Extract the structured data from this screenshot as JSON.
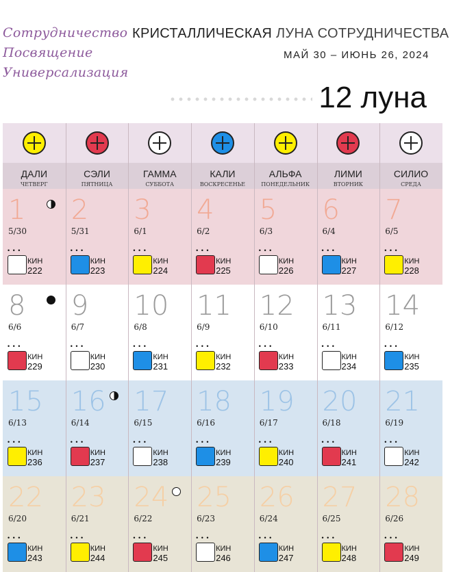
{
  "header": {
    "motto": [
      "Сотрудничество",
      "Посвящение",
      "Универсализация"
    ],
    "title_main": "КРИСТАЛЛИЧЕСКАЯ",
    "title_sub": "ЛУНА СОТРУДНИЧЕСТВА",
    "dates": "МАЙ 30 – ИЮНЬ 26, 2024",
    "moon_number": "12",
    "moon_word": "луна"
  },
  "colors": {
    "week1": "#f0d6db",
    "week2": "#ffffff",
    "week3": "#d6e4f1",
    "week4": "#e8e4d6",
    "week1_num": "#f1a994",
    "week2_num": "#9a9a9a",
    "week3_num": "#9dc3e6",
    "week4_num": "#f5cfa5"
  },
  "plasmas": [
    {
      "name": "ДАЛИ",
      "day": "ЧЕТВЕРГ",
      "color": "#ffef00",
      "icon": "dali-plasma-icon"
    },
    {
      "name": "СЭЛИ",
      "day": "ПЯТНИЦА",
      "color": "#e23a4f",
      "icon": "seli-plasma-icon"
    },
    {
      "name": "ГАММА",
      "day": "СУББОТА",
      "color": "#ffffff",
      "icon": "gamma-plasma-icon"
    },
    {
      "name": "КАЛИ",
      "day": "ВОСКРЕСЕНЬЕ",
      "color": "#1e8fe6",
      "icon": "kali-plasma-icon"
    },
    {
      "name": "АЛЬФА",
      "day": "ПОНЕДЕЛЬНИК",
      "color": "#ffef00",
      "icon": "alfa-plasma-icon"
    },
    {
      "name": "ЛИМИ",
      "day": "ВТОРНИК",
      "color": "#e23a4f",
      "icon": "limi-plasma-icon"
    },
    {
      "name": "СИЛИО",
      "day": "СРЕДА",
      "color": "#ffffff",
      "icon": "silio-plasma-icon"
    }
  ],
  "kin_label": "КИН",
  "weeks": [
    [
      {
        "n": "1",
        "d": "5/30",
        "kin": "222",
        "c": "#ffffff",
        "moon": "half"
      },
      {
        "n": "2",
        "d": "5/31",
        "kin": "223",
        "c": "#1e8fe6"
      },
      {
        "n": "3",
        "d": "6/1",
        "kin": "224",
        "c": "#ffef00"
      },
      {
        "n": "4",
        "d": "6/2",
        "kin": "225",
        "c": "#e23a4f"
      },
      {
        "n": "5",
        "d": "6/3",
        "kin": "226",
        "c": "#ffffff"
      },
      {
        "n": "6",
        "d": "6/4",
        "kin": "227",
        "c": "#1e8fe6"
      },
      {
        "n": "7",
        "d": "6/5",
        "kin": "228",
        "c": "#ffef00"
      }
    ],
    [
      {
        "n": "8",
        "d": "6/6",
        "kin": "229",
        "c": "#e23a4f",
        "moon": "new"
      },
      {
        "n": "9",
        "d": "6/7",
        "kin": "230",
        "c": "#ffffff"
      },
      {
        "n": "10",
        "d": "6/8",
        "kin": "231",
        "c": "#1e8fe6"
      },
      {
        "n": "11",
        "d": "6/9",
        "kin": "232",
        "c": "#ffef00"
      },
      {
        "n": "12",
        "d": "6/10",
        "kin": "233",
        "c": "#e23a4f"
      },
      {
        "n": "13",
        "d": "6/11",
        "kin": "234",
        "c": "#ffffff"
      },
      {
        "n": "14",
        "d": "6/12",
        "kin": "235",
        "c": "#1e8fe6"
      }
    ],
    [
      {
        "n": "15",
        "d": "6/13",
        "kin": "236",
        "c": "#ffef00"
      },
      {
        "n": "16",
        "d": "6/14",
        "kin": "237",
        "c": "#e23a4f",
        "moon": "half"
      },
      {
        "n": "17",
        "d": "6/15",
        "kin": "238",
        "c": "#ffffff"
      },
      {
        "n": "18",
        "d": "6/16",
        "kin": "239",
        "c": "#1e8fe6"
      },
      {
        "n": "19",
        "d": "6/17",
        "kin": "240",
        "c": "#ffef00"
      },
      {
        "n": "20",
        "d": "6/18",
        "kin": "241",
        "c": "#e23a4f"
      },
      {
        "n": "21",
        "d": "6/19",
        "kin": "242",
        "c": "#ffffff"
      }
    ],
    [
      {
        "n": "22",
        "d": "6/20",
        "kin": "243",
        "c": "#1e8fe6"
      },
      {
        "n": "23",
        "d": "6/21",
        "kin": "244",
        "c": "#ffef00"
      },
      {
        "n": "24",
        "d": "6/22",
        "kin": "245",
        "c": "#e23a4f",
        "moon": "full"
      },
      {
        "n": "25",
        "d": "6/23",
        "kin": "246",
        "c": "#ffffff"
      },
      {
        "n": "26",
        "d": "6/24",
        "kin": "247",
        "c": "#1e8fe6"
      },
      {
        "n": "27",
        "d": "6/25",
        "kin": "248",
        "c": "#ffef00"
      },
      {
        "n": "28",
        "d": "6/26",
        "kin": "249",
        "c": "#e23a4f"
      }
    ]
  ]
}
